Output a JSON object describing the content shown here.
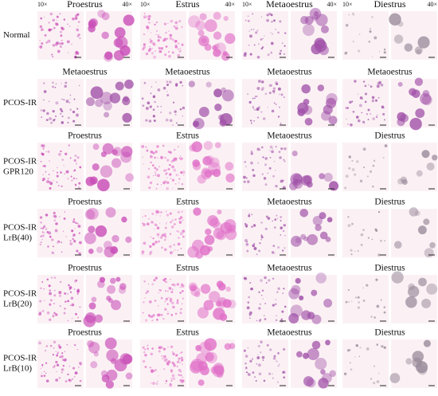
{
  "magnification": [
    "10×",
    "40×"
  ],
  "rows": [
    {
      "label": [
        "Normal"
      ],
      "stages": [
        "Proestrus",
        "Estrus",
        "Metaoestrus",
        "Diestrus"
      ]
    },
    {
      "label": [
        "PCOS-IR"
      ],
      "stages": [
        "Metaoestrus",
        "Metaoestrus",
        "Metaoestrus",
        "Metaoestrus"
      ]
    },
    {
      "label": [
        "PCOS-IR+",
        "GPR120"
      ],
      "stages": [
        "Proestrus",
        "Estrus",
        "Metaoestrus",
        "Diestrus"
      ]
    },
    {
      "label": [
        "PCOS-IR+",
        "LrB(40)"
      ],
      "stages": [
        "Proestrus",
        "Estrus",
        "Metaoestrus",
        "Diestrus"
      ]
    },
    {
      "label": [
        "PCOS-IR+",
        "LrB(20)"
      ],
      "stages": [
        "Proestrus",
        "Estrus",
        "Metaoestrus",
        "Diestrus"
      ]
    },
    {
      "label": [
        "PCOS-IR+",
        "LrB(10)"
      ],
      "stages": [
        "Proestrus",
        "Estrus",
        "Metaoestrus",
        "Diestrus"
      ]
    }
  ]
}
